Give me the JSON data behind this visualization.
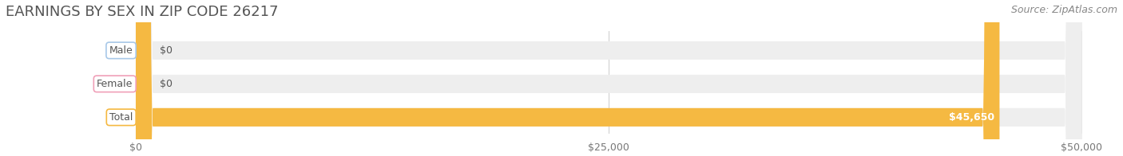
{
  "title": "EARNINGS BY SEX IN ZIP CODE 26217",
  "source": "Source: ZipAtlas.com",
  "categories": [
    "Male",
    "Female",
    "Total"
  ],
  "values": [
    0,
    0,
    45650
  ],
  "max_value": 50000,
  "bar_colors": [
    "#a8c8e8",
    "#f0a0b8",
    "#f5b942"
  ],
  "bar_bg_color": "#eeeeee",
  "label_colors": [
    "#888888",
    "#888888",
    "#ffffff"
  ],
  "value_labels": [
    "$0",
    "$0",
    "$45,650"
  ],
  "tick_labels": [
    "$0",
    "$25,000",
    "$50,000"
  ],
  "tick_values": [
    0,
    25000,
    50000
  ],
  "title_color": "#555555",
  "title_fontsize": 13,
  "source_color": "#888888",
  "source_fontsize": 9,
  "bar_height": 0.55,
  "background_color": "#ffffff",
  "label_bg_color": "#ffffff",
  "label_border_colors": [
    "#a8c8e8",
    "#f0a0b8",
    "#f5b942"
  ]
}
